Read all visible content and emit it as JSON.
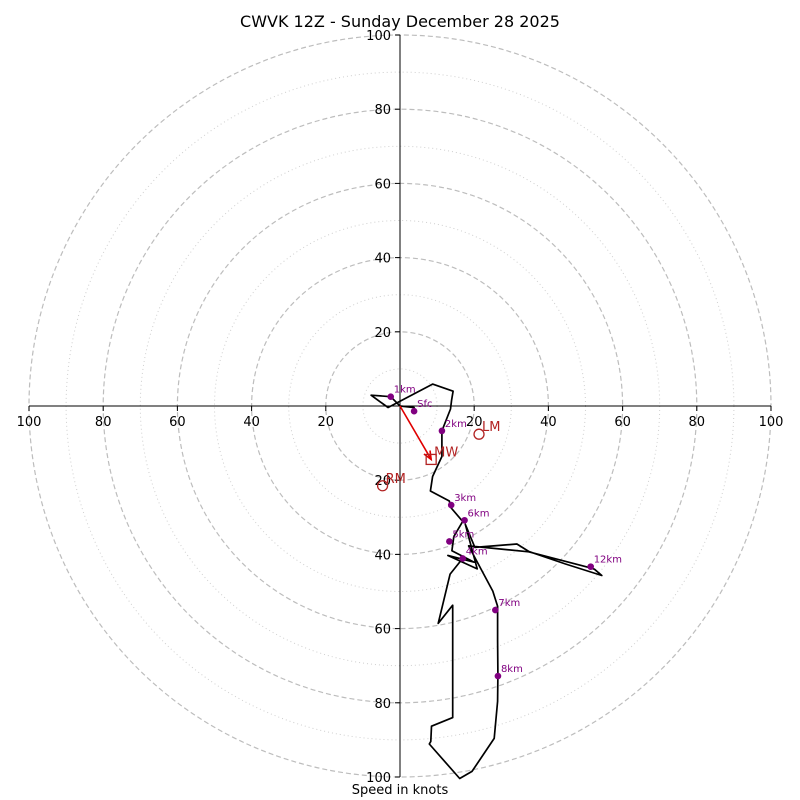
{
  "chart_data": {
    "type": "hodograph",
    "title": "CWVK 12Z - Sunday December 28 2025",
    "xlabel": "Speed in knots",
    "range": [
      -100,
      100
    ],
    "ring_major": [
      20,
      40,
      60,
      80,
      100
    ],
    "ring_minor": [
      10,
      30,
      50,
      70,
      90
    ],
    "ticks_x": [
      {
        "v": -100,
        "label": "100"
      },
      {
        "v": -80,
        "label": "80"
      },
      {
        "v": -60,
        "label": "60"
      },
      {
        "v": -40,
        "label": "40"
      },
      {
        "v": -20,
        "label": "20"
      },
      {
        "v": 20,
        "label": "20"
      },
      {
        "v": 40,
        "label": "40"
      },
      {
        "v": 60,
        "label": "60"
      },
      {
        "v": 80,
        "label": "80"
      },
      {
        "v": 100,
        "label": "100"
      }
    ],
    "ticks_y": [
      {
        "v": 100,
        "label": "100"
      },
      {
        "v": 80,
        "label": "80"
      },
      {
        "v": 60,
        "label": "60"
      },
      {
        "v": 40,
        "label": "40"
      },
      {
        "v": 20,
        "label": "20"
      },
      {
        "v": -20,
        "label": "20"
      },
      {
        "v": -40,
        "label": "40"
      },
      {
        "v": -60,
        "label": "60"
      },
      {
        "v": -80,
        "label": "80"
      },
      {
        "v": -100,
        "label": "100"
      }
    ],
    "hodograph_uv": [
      [
        3.8,
        -1.4
      ],
      [
        3.8,
        -0.4
      ],
      [
        0,
        0
      ],
      [
        -2.5,
        2.5
      ],
      [
        -7.8,
        2.9
      ],
      [
        -5.3,
        1.1
      ],
      [
        -3.2,
        -0.4
      ],
      [
        8.8,
        5.9
      ],
      [
        14.3,
        4.0
      ],
      [
        13.9,
        1.6
      ],
      [
        13.6,
        -0.8
      ],
      [
        11.3,
        -6.7
      ],
      [
        11.3,
        -13.6
      ],
      [
        8.8,
        -19.0
      ],
      [
        8.2,
        -22.9
      ],
      [
        13.3,
        -25.6
      ],
      [
        13.8,
        -27.5
      ],
      [
        16.9,
        -31.1
      ],
      [
        14.5,
        -35.2
      ],
      [
        14.0,
        -39.0
      ],
      [
        20.0,
        -42.1
      ],
      [
        12.9,
        -40.3
      ],
      [
        20.8,
        -43.9
      ],
      [
        17.6,
        -31.9
      ],
      [
        20.2,
        -38.1
      ],
      [
        31.5,
        -37.2
      ],
      [
        34.7,
        -39.2
      ],
      [
        44.6,
        -42.6
      ],
      [
        54.4,
        -45.7
      ],
      [
        52.4,
        -44.0
      ],
      [
        50.9,
        -43.5
      ],
      [
        34.7,
        -39.3
      ],
      [
        18.5,
        -37.7
      ],
      [
        25.0,
        -49.9
      ],
      [
        26.3,
        -54.0
      ],
      [
        26.3,
        -63.3
      ],
      [
        26.4,
        -72.3
      ],
      [
        26.3,
        -79.6
      ],
      [
        25.4,
        -89.6
      ],
      [
        19.4,
        -98.5
      ],
      [
        16.1,
        -100.4
      ],
      [
        7.9,
        -91.1
      ],
      [
        8.3,
        -90.4
      ],
      [
        8.5,
        -86.3
      ],
      [
        14.2,
        -84.0
      ],
      [
        14.2,
        -81.2
      ],
      [
        14.2,
        -53.7
      ],
      [
        10.3,
        -58.6
      ],
      [
        13.5,
        -45.3
      ],
      [
        16.8,
        -41.2
      ]
    ],
    "height_markers": [
      {
        "label": "Sfc",
        "u": 3.8,
        "v": -1.4
      },
      {
        "label": "1km",
        "u": -2.5,
        "v": 2.5
      },
      {
        "label": "2km",
        "u": 11.3,
        "v": -6.7
      },
      {
        "label": "3km",
        "u": 13.8,
        "v": -26.7
      },
      {
        "label": "4km",
        "u": 16.9,
        "v": -41.1
      },
      {
        "label": "5km",
        "u": 13.3,
        "v": -36.5
      },
      {
        "label": "6km",
        "u": 17.4,
        "v": -30.8
      },
      {
        "label": "7km",
        "u": 25.7,
        "v": -55.0
      },
      {
        "label": "8km",
        "u": 26.4,
        "v": -72.8
      },
      {
        "label": "12km",
        "u": 51.4,
        "v": -43.3
      }
    ],
    "motion_markers": [
      {
        "label": "LM",
        "u": 21.3,
        "v": -7.6,
        "shape": "circle"
      },
      {
        "label": "RM",
        "u": -4.7,
        "v": -21.5,
        "shape": "circle"
      },
      {
        "label": "MW",
        "u": 8.4,
        "v": -14.4,
        "shape": "square"
      }
    ],
    "mean_wind_arrow": {
      "from": [
        0,
        0
      ],
      "to": [
        8.4,
        -14.4
      ]
    },
    "colors": {
      "trace": "#000000",
      "marker": "#800080",
      "motion": "#b22222",
      "arrow": "#e00000",
      "grid": "#bdbdbd"
    }
  }
}
